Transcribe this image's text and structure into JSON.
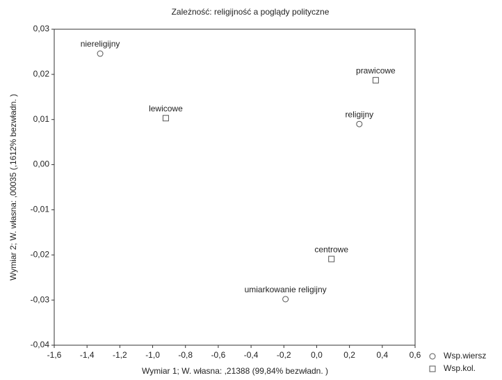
{
  "chart_data": {
    "type": "scatter",
    "title": "Zależność: religijność a poglądy polityczne",
    "x_label": "Wymiar    1; W. własna:  ,21388 (99,84% bezwładn. )",
    "y_label": "Wymiar   2; W. własna:  ,00035 (,1612% bezwładn. )",
    "xlim": [
      -1.6,
      0.6
    ],
    "ylim": [
      -0.04,
      0.03
    ],
    "xticks": [
      {
        "value": -1.6,
        "label": "-1,6"
      },
      {
        "value": -1.4,
        "label": "-1,4"
      },
      {
        "value": -1.2,
        "label": "-1,2"
      },
      {
        "value": -1.0,
        "label": "-1,0"
      },
      {
        "value": -0.8,
        "label": "-0,8"
      },
      {
        "value": -0.6,
        "label": "-0,6"
      },
      {
        "value": -0.4,
        "label": "-0,4"
      },
      {
        "value": -0.2,
        "label": "-0,2"
      },
      {
        "value": 0.0,
        "label": "0,0"
      },
      {
        "value": 0.2,
        "label": "0,2"
      },
      {
        "value": 0.4,
        "label": "0,4"
      },
      {
        "value": 0.6,
        "label": "0,6"
      }
    ],
    "yticks": [
      {
        "value": -0.04,
        "label": "-0,04"
      },
      {
        "value": -0.03,
        "label": "-0,03"
      },
      {
        "value": -0.02,
        "label": "-0,02"
      },
      {
        "value": -0.01,
        "label": "-0,01"
      },
      {
        "value": 0.0,
        "label": "0,00"
      },
      {
        "value": 0.01,
        "label": "0,01"
      },
      {
        "value": 0.02,
        "label": "0,02"
      },
      {
        "value": 0.03,
        "label": "0,03"
      }
    ],
    "grid": false,
    "legend": "right-bottom",
    "series": [
      {
        "name": "Wsp.wiersz",
        "marker": "circle",
        "color": "#555555",
        "labels": [
          "niereligijny",
          "religijny",
          "umiarkowanie religijny"
        ],
        "x": [
          -1.32,
          0.26,
          -0.19
        ],
        "values": [
          0.0246,
          0.009,
          -0.0298
        ]
      },
      {
        "name": "Wsp.kol.",
        "marker": "square",
        "color": "#555555",
        "labels": [
          "lewicowe",
          "prawicowe",
          "centrowe"
        ],
        "x": [
          -0.92,
          0.36,
          0.09
        ],
        "values": [
          0.0103,
          0.0187,
          -0.0209
        ]
      }
    ]
  }
}
